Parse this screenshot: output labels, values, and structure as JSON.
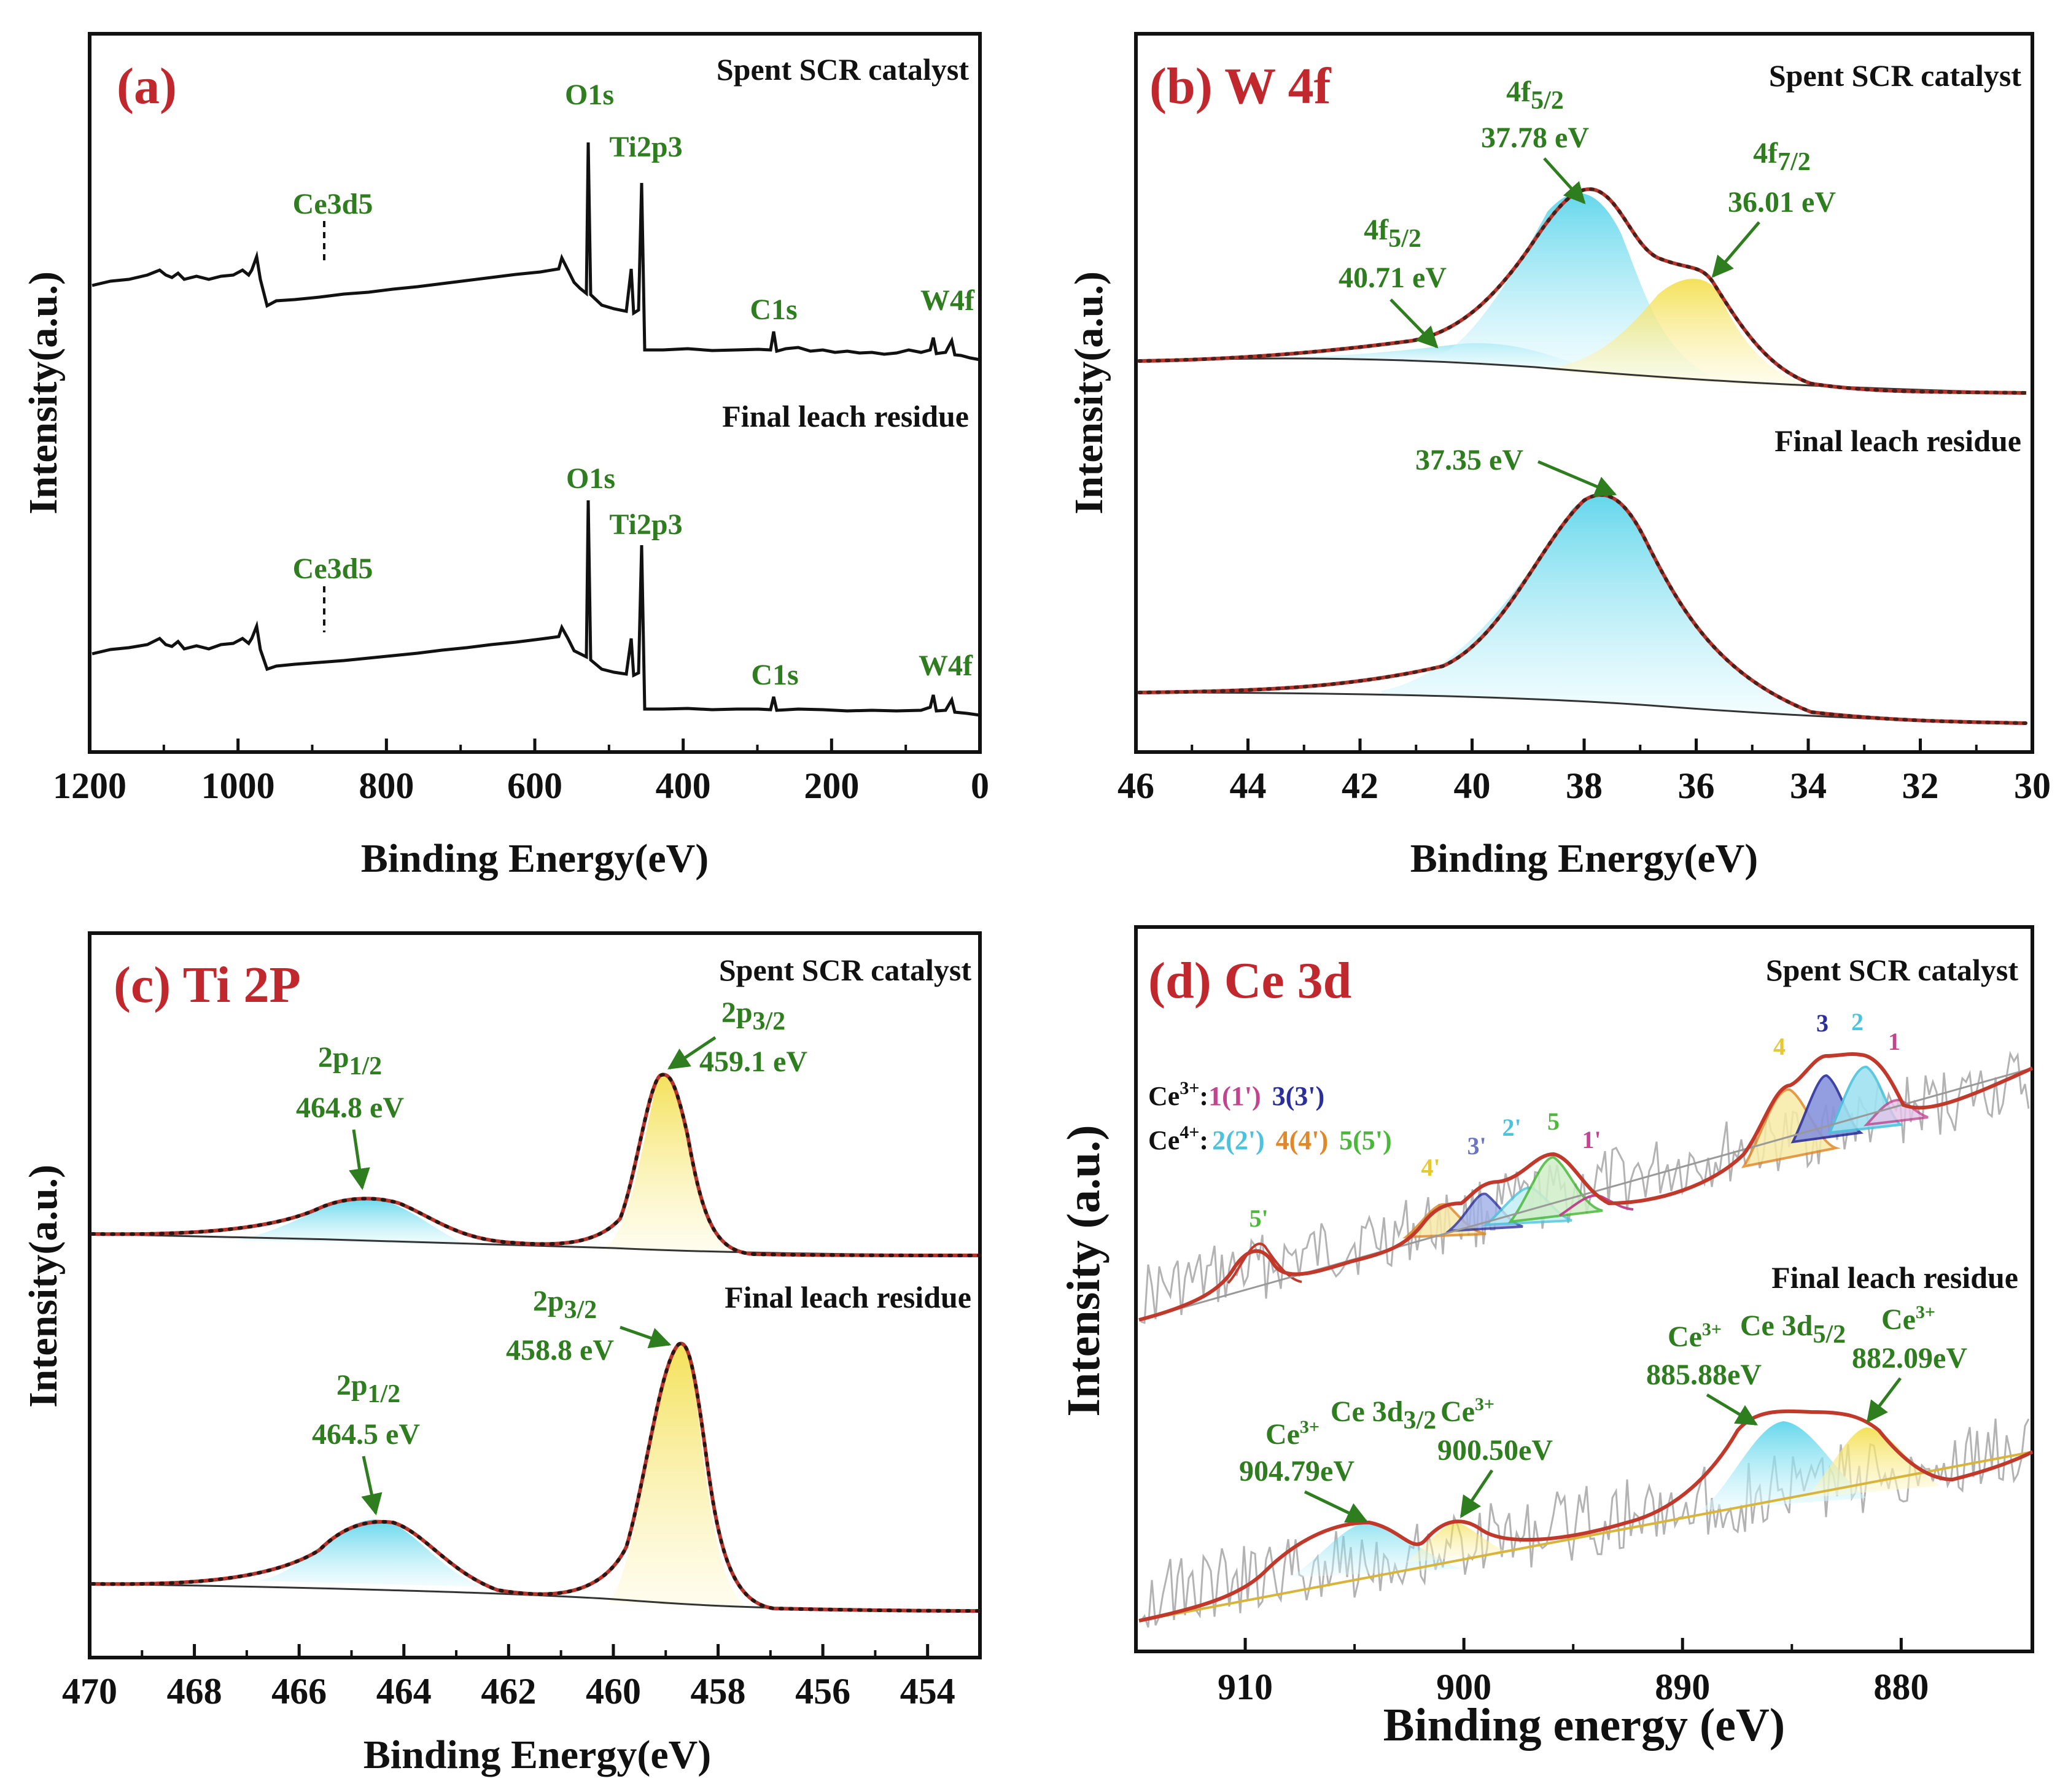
{
  "colors": {
    "title_red": "#c0282d",
    "label_green": "#2e7d1e",
    "fit_red": "#b5342c",
    "cyan": "#5fd6ea",
    "yellow": "#f2e04c",
    "raw_gray": "#b3b3b3"
  },
  "chart_data": [
    {
      "id": "a",
      "type": "line",
      "title": "(a)",
      "xlabel": "Binding Energy(eV)",
      "ylabel": "Intensity(a.u.)",
      "xlim": [
        1200,
        0
      ],
      "xticks": [
        1200,
        1000,
        800,
        600,
        400,
        200,
        0
      ],
      "series": [
        {
          "name": "Spent SCR catalyst",
          "peaks": [
            {
              "label": "O1s",
              "x": 531
            },
            {
              "label": "Ti2p3",
              "x": 459
            },
            {
              "label": "Ce3d5",
              "x": 885
            },
            {
              "label": "C1s",
              "x": 285
            },
            {
              "label": "W4f",
              "x": 36
            }
          ]
        },
        {
          "name": "Final leach residue",
          "peaks": [
            {
              "label": "O1s",
              "x": 531
            },
            {
              "label": "Ti2p3",
              "x": 459
            },
            {
              "label": "Ce3d5",
              "x": 885
            },
            {
              "label": "C1s",
              "x": 285
            },
            {
              "label": "W4f",
              "x": 36
            }
          ]
        }
      ]
    },
    {
      "id": "b",
      "type": "line",
      "title": "(b) W 4f",
      "xlabel": "Binding Energy(eV)",
      "ylabel": "Intensity(a.u.)",
      "xlim": [
        46,
        30
      ],
      "xticks": [
        46,
        44,
        42,
        40,
        38,
        36,
        34,
        32,
        30
      ],
      "series": [
        {
          "name": "Spent SCR catalyst",
          "peaks": [
            {
              "label": "4f",
              "sub": "5/2",
              "value": "40.71 eV",
              "x": 40.71
            },
            {
              "label": "4f",
              "sub": "5/2",
              "value": "37.78 eV",
              "x": 37.78
            },
            {
              "label": "4f",
              "sub": "7/2",
              "value": "36.01 eV",
              "x": 36.01
            }
          ]
        },
        {
          "name": "Final leach residue",
          "peaks": [
            {
              "label": "",
              "value": "37.35 eV",
              "x": 37.35
            }
          ]
        }
      ]
    },
    {
      "id": "c",
      "type": "line",
      "title": "(c) Ti 2P",
      "xlabel": "Binding Energy(eV)",
      "ylabel": "Intensity(a.u.)",
      "xlim": [
        470,
        453
      ],
      "xticks": [
        470,
        468,
        466,
        464,
        462,
        460,
        458,
        456,
        454
      ],
      "series": [
        {
          "name": "Spent SCR catalyst",
          "peaks": [
            {
              "label": "2p",
              "sub": "1/2",
              "value": "464.8 eV",
              "x": 464.8
            },
            {
              "label": "2p",
              "sub": "3/2",
              "value": "459.1 eV",
              "x": 459.1
            }
          ]
        },
        {
          "name": "Final leach residue",
          "peaks": [
            {
              "label": "2p",
              "sub": "1/2",
              "value": "464.5 eV",
              "x": 464.5
            },
            {
              "label": "2p",
              "sub": "3/2",
              "value": "458.8 eV",
              "x": 458.8
            }
          ]
        }
      ]
    },
    {
      "id": "d",
      "type": "line",
      "title": "(d) Ce 3d",
      "xlabel": "Binding energy (eV)",
      "ylabel": "Intensity (a.u.)",
      "xlim": [
        915,
        874
      ],
      "xticks": [
        910,
        900,
        890,
        880
      ],
      "legend": {
        "ce3_prefix": "Ce",
        "ce3_sup": "3+",
        "ce3_items": [
          "1(1')",
          "3(3')"
        ],
        "ce4_prefix": "Ce",
        "ce4_sup": "4+",
        "ce4_items": [
          "2(2')",
          "4(4')",
          "5(5')"
        ]
      },
      "series": [
        {
          "name": "Spent SCR catalyst",
          "components": [
            "5'",
            "4'",
            "3'",
            "2'",
            "5",
            "1'",
            "4",
            "3",
            "2",
            "1"
          ]
        },
        {
          "name": "Final leach residue",
          "peaks": [
            {
              "label": "Ce",
              "sup": "3+",
              "value": "904.79eV",
              "x": 904.79
            },
            {
              "label": "Ce",
              "sup": "3+",
              "value": "900.50eV",
              "x": 900.5
            },
            {
              "label": "Ce",
              "sup": "3+",
              "value": "885.88eV",
              "x": 885.88
            },
            {
              "label": "Ce",
              "sup": "3+",
              "value": "882.09eV",
              "x": 882.09
            }
          ],
          "groups": [
            {
              "label": "Ce 3d",
              "sub": "3/2"
            },
            {
              "label": "Ce 3d",
              "sub": "5/2"
            }
          ]
        }
      ]
    }
  ]
}
